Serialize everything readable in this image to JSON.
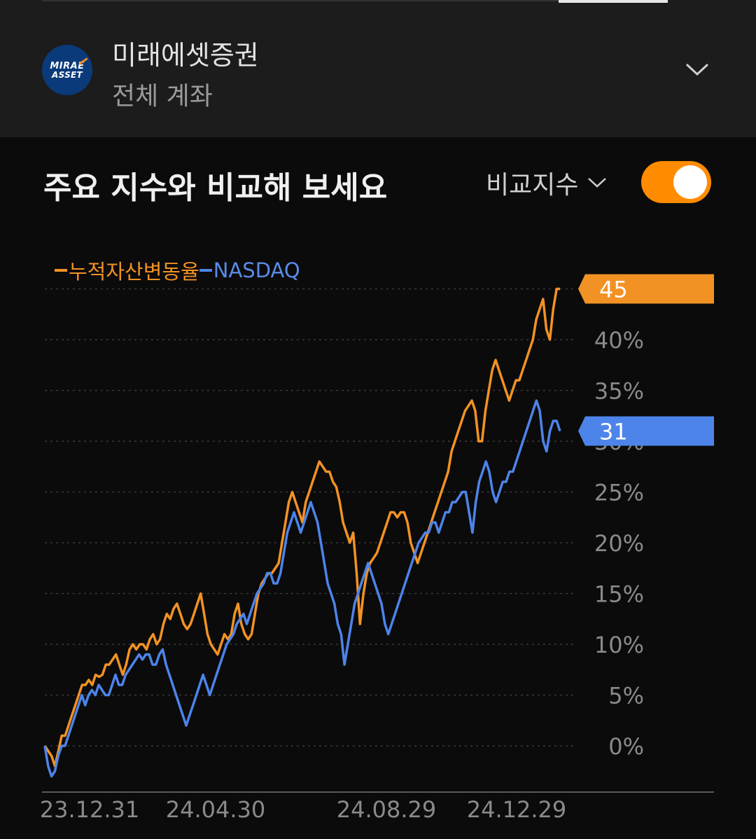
{
  "account": {
    "broker_name": "미래에셋증권",
    "account_type": "전체 계좌",
    "logo_text_line1": "MIRAE",
    "logo_text_line2": "ASSET",
    "logo_color": "#0a3a7a"
  },
  "section": {
    "title": "주요 지수와 비교해 보세요",
    "compare_label": "비교지수",
    "toggle_on": true,
    "toggle_color": "#ff8c00"
  },
  "chart_data": {
    "type": "line",
    "x_ticks": [
      "23.12.31",
      "24.04.30",
      "24.08.29",
      "24.12.29"
    ],
    "y_ticks": [
      "0%",
      "5%",
      "10%",
      "15%",
      "20%",
      "25%",
      "30%",
      "35%",
      "40%"
    ],
    "ylim": [
      -3,
      45
    ],
    "grid": true,
    "legend_position": "top-left",
    "series": [
      {
        "name": "누적자산변동율",
        "color": "#f29224",
        "end_label": "45",
        "values": [
          0,
          -0.5,
          -1,
          -2,
          -0.5,
          1,
          1,
          2,
          3,
          4,
          5,
          6,
          6,
          6.5,
          6,
          7,
          6.8,
          7,
          8,
          8,
          8.5,
          9,
          8,
          7,
          8,
          9.5,
          10,
          9.5,
          10,
          10,
          9.5,
          10.5,
          11,
          10,
          10.5,
          12,
          13,
          12.5,
          13.5,
          14,
          13,
          12,
          11.5,
          12,
          13,
          14,
          15,
          13,
          11,
          10,
          9.5,
          9,
          10,
          11,
          10.5,
          11,
          13,
          14,
          12,
          11,
          10.5,
          11,
          13,
          15,
          16,
          16.5,
          17,
          17,
          17.5,
          18,
          20,
          22,
          24,
          25,
          24,
          23,
          22,
          24,
          25,
          26,
          27,
          28,
          27.5,
          27,
          27,
          26,
          25.5,
          24,
          22,
          21,
          20,
          21,
          17,
          12,
          15,
          17,
          18,
          18.5,
          19,
          20,
          21,
          22,
          23,
          23,
          22.5,
          23,
          23,
          22,
          20,
          19,
          18,
          19,
          20,
          21,
          22,
          23,
          24,
          25,
          26,
          27,
          29,
          30,
          31,
          32,
          33,
          33.5,
          34,
          33,
          30,
          30,
          33,
          35,
          37,
          38,
          37,
          36,
          35,
          34,
          35,
          36,
          36,
          37,
          38,
          39,
          40,
          42,
          43,
          44,
          41,
          40,
          43,
          45,
          45
        ]
      },
      {
        "name": "NASDAQ",
        "color": "#4d84ea",
        "end_label": "31",
        "values": [
          0,
          -2,
          -3,
          -2.5,
          -1,
          0,
          0,
          1,
          2,
          3,
          4,
          5,
          4,
          5,
          5.5,
          5,
          6,
          5.5,
          5,
          5,
          6,
          7,
          6,
          6,
          7,
          7.5,
          8,
          8.5,
          9,
          8.5,
          9,
          9,
          8,
          8,
          9,
          9.5,
          8,
          7,
          6,
          5,
          4,
          3,
          2,
          3,
          4,
          5,
          6,
          7,
          6,
          5,
          6,
          7,
          8,
          9,
          10,
          10.5,
          11,
          12,
          12.5,
          13,
          12,
          13,
          14,
          15,
          15.5,
          16,
          17,
          17,
          16,
          16,
          17,
          19,
          21,
          22,
          23,
          22,
          21,
          22,
          23,
          24,
          23,
          22,
          20,
          18,
          16,
          15,
          14,
          12,
          11,
          8,
          10,
          12,
          14,
          15,
          16,
          17,
          18,
          17,
          16,
          15,
          14,
          12,
          11,
          12,
          13,
          14,
          15,
          16,
          17,
          18,
          19,
          20,
          20.5,
          21,
          21,
          22,
          22,
          21,
          22,
          23,
          23,
          24,
          24,
          24.5,
          25,
          25,
          23,
          21,
          24,
          26,
          27,
          28,
          27,
          25,
          24,
          25,
          26,
          26,
          27,
          27,
          28,
          29,
          30,
          31,
          32,
          33,
          34,
          33,
          30,
          29,
          31,
          32,
          32,
          31
        ]
      }
    ]
  }
}
